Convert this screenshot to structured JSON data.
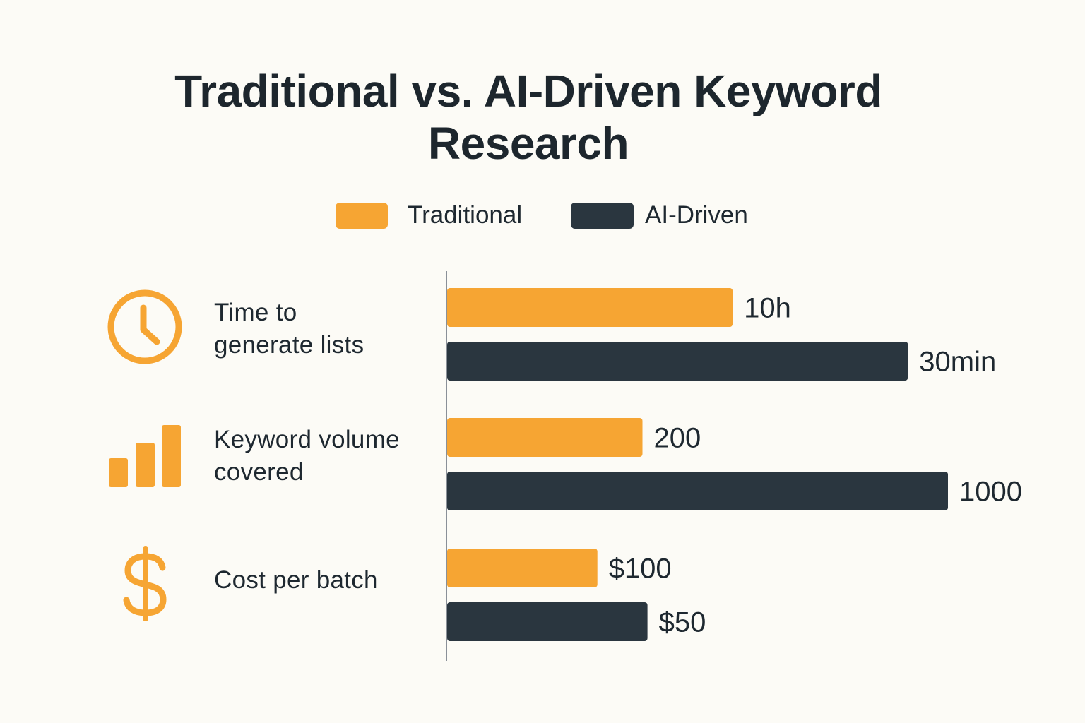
{
  "colors": {
    "background": "#fcfbf6",
    "traditional": "#f6a533",
    "ai_driven": "#2a363f",
    "text": "#1e2830",
    "axis": "#8a9098"
  },
  "chart_data": {
    "type": "bar",
    "orientation": "horizontal",
    "title_lines": [
      "Traditional vs. AI-Driven Keyword",
      "Research"
    ],
    "legend": {
      "placement": "top-center",
      "entries": [
        "Traditional",
        "AI-Driven"
      ]
    },
    "categories": [
      {
        "label_lines": [
          "Time to",
          "generate lists"
        ],
        "icon": "clock-icon"
      },
      {
        "label_lines": [
          "Keyword volume",
          "covered"
        ],
        "icon": "bar-chart-icon"
      },
      {
        "label_lines": [
          "Cost per batch"
        ],
        "icon": "dollar-icon"
      }
    ],
    "series": [
      {
        "name": "Traditional",
        "labels": [
          "10h",
          "200",
          "$100"
        ],
        "values": [
          10,
          200,
          100
        ],
        "relative_length": [
          0.57,
          0.39,
          0.3
        ]
      },
      {
        "name": "AI-Driven",
        "labels": [
          "30min",
          "1000",
          "$50"
        ],
        "values": [
          0.5,
          1000,
          50
        ],
        "relative_length": [
          0.92,
          1.0,
          0.4
        ]
      }
    ],
    "grid": false
  }
}
